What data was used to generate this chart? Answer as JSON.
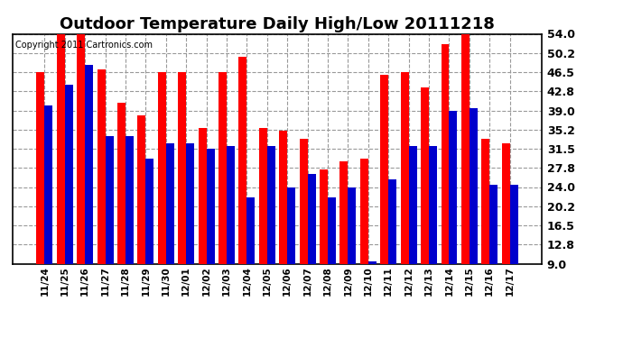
{
  "title": "Outdoor Temperature Daily High/Low 20111218",
  "copyright": "Copyright 2011 Cartronics.com",
  "dates": [
    "11/24",
    "11/25",
    "11/26",
    "11/27",
    "11/28",
    "11/29",
    "11/30",
    "12/01",
    "12/02",
    "12/03",
    "12/04",
    "12/05",
    "12/06",
    "12/07",
    "12/08",
    "12/09",
    "12/10",
    "12/11",
    "12/12",
    "12/13",
    "12/14",
    "12/15",
    "12/16",
    "12/17"
  ],
  "highs": [
    46.5,
    54.0,
    54.0,
    47.0,
    40.5,
    38.0,
    46.5,
    46.5,
    35.5,
    46.5,
    49.5,
    35.5,
    35.0,
    33.5,
    27.5,
    29.0,
    29.5,
    46.0,
    46.5,
    43.5,
    52.0,
    54.0,
    33.5,
    32.5
  ],
  "lows": [
    40.0,
    44.0,
    48.0,
    34.0,
    34.0,
    29.5,
    32.5,
    32.5,
    31.5,
    32.0,
    22.0,
    32.0,
    24.0,
    26.5,
    22.0,
    24.0,
    9.5,
    25.5,
    32.0,
    32.0,
    39.0,
    39.5,
    24.5,
    24.5
  ],
  "high_color": "#ff0000",
  "low_color": "#0000cc",
  "ylim_min": 9.0,
  "ylim_max": 54.0,
  "yticks": [
    9.0,
    12.8,
    16.5,
    20.2,
    24.0,
    27.8,
    31.5,
    35.2,
    39.0,
    42.8,
    46.5,
    50.2,
    54.0
  ],
  "background_color": "#ffffff",
  "grid_color": "#999999",
  "title_fontsize": 13,
  "copyright_fontsize": 7,
  "bar_width": 0.4
}
